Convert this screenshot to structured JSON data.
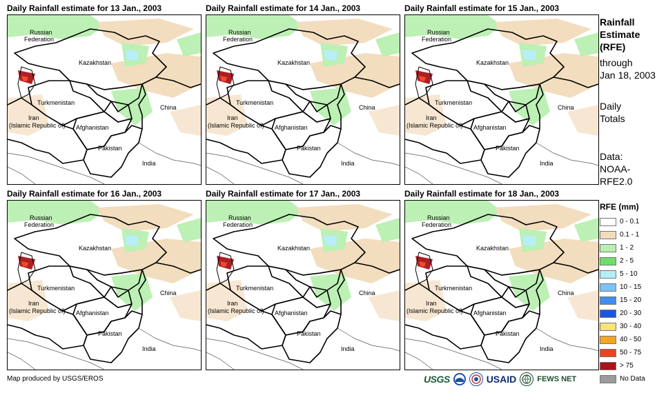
{
  "panels": [
    {
      "title": "Daily Rainfall estimate for 13 Jan., 2003"
    },
    {
      "title": "Daily Rainfall estimate for 14 Jan., 2003"
    },
    {
      "title": "Daily Rainfall estimate for 15 Jan., 2003"
    },
    {
      "title": "Daily Rainfall estimate for 16 Jan., 2003"
    },
    {
      "title": "Daily Rainfall estimate for 17 Jan., 2003"
    },
    {
      "title": "Daily Rainfall estimate for 18 Jan., 2003"
    }
  ],
  "map_labels": {
    "russia_1": "Russian",
    "russia_2": "Federation",
    "kazakhstan": "Kazakhstan",
    "turkmenistan": "Turkmenistan",
    "iran_1": "Iran",
    "iran_2": "(Islamic Republic of)",
    "afghanistan": "Afghanistan",
    "pakistan": "Pakistan",
    "china": "China",
    "india": "India"
  },
  "side_text": {
    "heading_1": "Rainfall",
    "heading_2": "Estimate",
    "heading_3": "(RFE)",
    "through_1": "through",
    "through_2": "Jan 18, 2003",
    "totals_1": "Daily",
    "totals_2": "Totals",
    "data_1": "Data:",
    "data_2": "NOAA-",
    "data_3": "RFE2.0"
  },
  "legend": {
    "title": "RFE (mm)",
    "items": [
      {
        "label": "0 - 0.1",
        "color": "#ffffff"
      },
      {
        "label": "0.1 - 1",
        "color": "#f2dcbb"
      },
      {
        "label": "1 - 2",
        "color": "#b9f0b0"
      },
      {
        "label": "2 - 5",
        "color": "#6fdc6c"
      },
      {
        "label": "5 - 10",
        "color": "#b4eef7"
      },
      {
        "label": "10 - 15",
        "color": "#7ec2f5"
      },
      {
        "label": "15 - 20",
        "color": "#3f8ef0"
      },
      {
        "label": "20 - 30",
        "color": "#1a55e0"
      },
      {
        "label": "30 - 40",
        "color": "#f7e27c"
      },
      {
        "label": "40 - 50",
        "color": "#f5a623"
      },
      {
        "label": "50 - 75",
        "color": "#f0431c"
      },
      {
        "label": "> 75",
        "color": "#a8141a"
      },
      {
        "label": "No Data",
        "color": "#9b9b9b"
      }
    ]
  },
  "credit": "Map produced by USGS/EROS",
  "logos": {
    "usgs": "USGS",
    "usaid": "USAID",
    "fews": "FEWS NET"
  }
}
